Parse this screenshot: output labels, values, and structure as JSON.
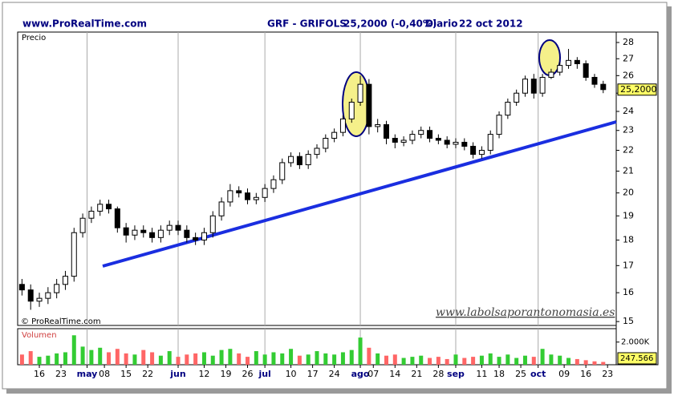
{
  "chart_data": {
    "type": "candlestick",
    "header": {
      "site": "www.ProRealTime.com",
      "symbol": "GRF - GRIFOLS",
      "price": "25,2000 (-0,40%)",
      "period": "Diario",
      "date": "22 oct 2012"
    },
    "panel_label": "Precio",
    "copyright": "© ProRealTime.com",
    "watermark": "www.labolsaporantonomasia.es",
    "log": true,
    "up_color": "#ffffff",
    "down_color": "#000000",
    "x": [
      0,
      2,
      4,
      6,
      8,
      10,
      12,
      14,
      16,
      18,
      20,
      22,
      24,
      26,
      28,
      30,
      32,
      34,
      36,
      38,
      40,
      42,
      44,
      46,
      48,
      50,
      52,
      54,
      56,
      58,
      60,
      62,
      64,
      66,
      68,
      70,
      72,
      74,
      76,
      78,
      80,
      82,
      84,
      86,
      88,
      90,
      92,
      94,
      96,
      98,
      100,
      102,
      104,
      106,
      108,
      110,
      112,
      114,
      116,
      118,
      120,
      122,
      124,
      126,
      128,
      130,
      132,
      134
    ],
    "open": [
      16.3,
      16.1,
      15.7,
      15.8,
      16.0,
      16.3,
      16.6,
      18.3,
      18.9,
      19.2,
      19.5,
      19.3,
      18.5,
      18.2,
      18.4,
      18.3,
      18.1,
      18.4,
      18.6,
      18.4,
      18.1,
      18.0,
      18.3,
      19.0,
      19.6,
      20.1,
      20.0,
      19.7,
      19.8,
      20.2,
      20.6,
      21.4,
      21.7,
      21.3,
      21.8,
      22.1,
      22.6,
      22.9,
      23.6,
      24.5,
      25.5,
      23.2,
      23.3,
      22.6,
      22.4,
      22.5,
      22.8,
      23.0,
      22.6,
      22.5,
      22.3,
      22.4,
      22.2,
      21.8,
      22.0,
      22.8,
      23.8,
      24.5,
      25.0,
      25.8,
      25.0,
      25.9,
      26.2,
      26.6,
      26.9,
      26.7,
      25.9,
      25.5
    ],
    "high": [
      16.5,
      16.3,
      16.0,
      16.2,
      16.5,
      16.8,
      18.5,
      19.1,
      19.4,
      19.7,
      19.7,
      19.4,
      18.7,
      18.6,
      18.6,
      18.5,
      18.6,
      18.8,
      18.8,
      18.6,
      18.3,
      18.5,
      19.2,
      19.8,
      20.4,
      20.3,
      20.2,
      20.0,
      20.4,
      20.8,
      21.6,
      21.9,
      21.9,
      22.0,
      22.3,
      22.8,
      23.1,
      23.8,
      24.7,
      26.0,
      25.8,
      23.6,
      23.5,
      22.8,
      22.7,
      23.0,
      23.2,
      23.2,
      22.8,
      22.7,
      22.6,
      22.6,
      22.4,
      22.2,
      23.0,
      24.0,
      24.7,
      25.2,
      26.0,
      26.1,
      26.1,
      26.4,
      26.8,
      27.6,
      27.1,
      26.9,
      26.1,
      25.7
    ],
    "low": [
      15.9,
      15.4,
      15.5,
      15.6,
      15.8,
      16.1,
      16.4,
      18.1,
      18.7,
      19.0,
      19.1,
      18.3,
      17.9,
      18.0,
      18.1,
      17.9,
      17.9,
      18.2,
      18.2,
      17.9,
      17.8,
      17.8,
      18.1,
      18.8,
      19.4,
      19.8,
      19.5,
      19.5,
      19.6,
      20.0,
      20.4,
      21.2,
      21.1,
      21.1,
      21.6,
      21.9,
      22.4,
      22.7,
      23.4,
      24.3,
      22.8,
      22.9,
      22.3,
      22.1,
      22.2,
      22.3,
      22.6,
      22.4,
      22.3,
      22.1,
      22.1,
      22.0,
      21.6,
      21.6,
      21.8,
      22.6,
      23.6,
      24.3,
      24.8,
      24.7,
      24.8,
      25.8,
      26.0,
      26.4,
      26.4,
      25.7,
      25.3,
      25.0
    ],
    "close": [
      16.1,
      15.7,
      15.8,
      16.0,
      16.3,
      16.6,
      18.3,
      18.9,
      19.2,
      19.5,
      19.3,
      18.5,
      18.2,
      18.4,
      18.3,
      18.1,
      18.4,
      18.6,
      18.4,
      18.1,
      18.0,
      18.3,
      19.0,
      19.6,
      20.1,
      20.0,
      19.7,
      19.8,
      20.2,
      20.6,
      21.4,
      21.7,
      21.3,
      21.8,
      22.1,
      22.6,
      22.9,
      23.6,
      24.5,
      25.5,
      23.2,
      23.3,
      22.6,
      22.4,
      22.5,
      22.8,
      23.0,
      22.6,
      22.5,
      22.3,
      22.4,
      22.2,
      21.8,
      22.0,
      22.8,
      23.8,
      24.5,
      25.0,
      25.8,
      25.0,
      25.9,
      26.2,
      26.6,
      26.9,
      26.7,
      25.9,
      25.5,
      25.2
    ],
    "last_price_label": "25,2000",
    "xlim": [
      -1,
      137
    ],
    "xticks": [
      {
        "value": 4,
        "label": "16"
      },
      {
        "value": 9,
        "label": "23"
      },
      {
        "value": 15,
        "label": "may"
      },
      {
        "value": 19,
        "label": "08"
      },
      {
        "value": 24,
        "label": "15"
      },
      {
        "value": 29,
        "label": "22"
      },
      {
        "value": 36,
        "label": "jun"
      },
      {
        "value": 42,
        "label": "12"
      },
      {
        "value": 47,
        "label": "19"
      },
      {
        "value": 52,
        "label": "26"
      },
      {
        "value": 56,
        "label": "jul"
      },
      {
        "value": 62,
        "label": "10"
      },
      {
        "value": 67,
        "label": "17"
      },
      {
        "value": 72,
        "label": "24"
      },
      {
        "value": 78,
        "label": "ago"
      },
      {
        "value": 81,
        "label": "07"
      },
      {
        "value": 86,
        "label": "14"
      },
      {
        "value": 91,
        "label": "21"
      },
      {
        "value": 96,
        "label": "28"
      },
      {
        "value": 100,
        "label": "sep"
      },
      {
        "value": 106,
        "label": "11"
      },
      {
        "value": 110,
        "label": "18"
      },
      {
        "value": 115,
        "label": "25"
      },
      {
        "value": 119,
        "label": "oct"
      },
      {
        "value": 125,
        "label": "09"
      },
      {
        "value": 130,
        "label": "16"
      },
      {
        "value": 135,
        "label": "23"
      }
    ],
    "ylim": [
      14.87,
      28.66
    ],
    "yticks": [
      15,
      16,
      17,
      18,
      19,
      20,
      21,
      22,
      23,
      24,
      25,
      26,
      27,
      28
    ],
    "volume": {
      "label": "Volumen",
      "up_color": "#33cc33",
      "down_color": "#ff6666",
      "values": [
        900,
        1200,
        700,
        800,
        1000,
        1100,
        2600,
        1600,
        1300,
        1500,
        1100,
        1400,
        1000,
        900,
        1300,
        1100,
        800,
        1200,
        700,
        900,
        1000,
        1100,
        800,
        1300,
        1400,
        1000,
        700,
        1200,
        900,
        1100,
        1000,
        1400,
        800,
        900,
        1200,
        1000,
        900,
        1100,
        1300,
        2400,
        1500,
        1000,
        800,
        900,
        600,
        700,
        800,
        600,
        700,
        500,
        900,
        600,
        700,
        800,
        1000,
        700,
        900,
        600,
        800,
        700,
        1400,
        900,
        800,
        600,
        500,
        400,
        300,
        247.566
      ],
      "last_label": "247.566",
      "ylim": [
        0,
        3185
      ],
      "yticks": [
        {
          "value": 2000,
          "label": "2.000K"
        }
      ]
    }
  }
}
